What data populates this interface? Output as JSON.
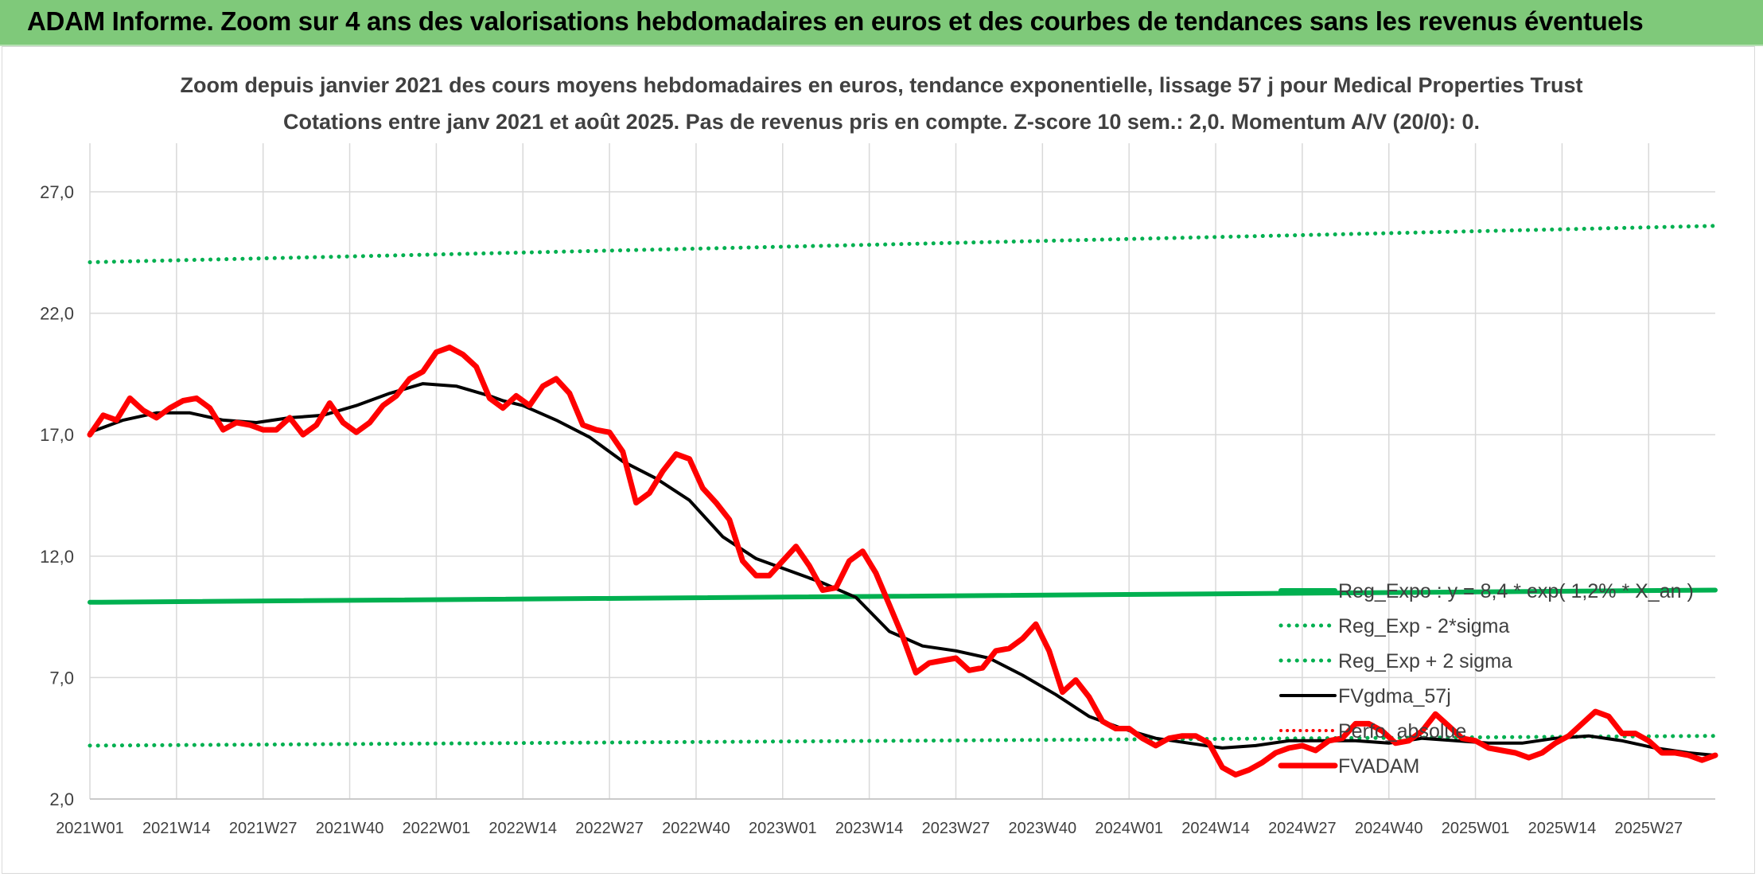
{
  "banner": {
    "title": "ADAM Informe. Zoom sur 4 ans des valorisations hebdomadaires en euros et des courbes de tendances sans les revenus éventuels"
  },
  "colors": {
    "banner": "#7fc97a",
    "trend": "#00b050",
    "price": "#ff0000",
    "smooth": "#000000",
    "absolute": "#ff0000",
    "grid": "#d9d9d9",
    "text": "#404040"
  },
  "chart_data": {
    "type": "line",
    "title": "Zoom depuis janvier 2021 des cours moyens hebdomadaires en euros, tendance exponentielle, lissage 57 j pour Medical Properties Trust",
    "subtitle": "Cotations entre janv 2021 et août 2025. Pas de revenus pris en compte. Z-score 10 sem.: 2,0. Momentum A/V (20/0): 0.",
    "ylim": [
      2,
      29
    ],
    "yticks": [
      "2,0",
      "7,0",
      "12,0",
      "17,0",
      "22,0",
      "27,0"
    ],
    "ytick_values": [
      2,
      7,
      12,
      17,
      22,
      27
    ],
    "xticks": [
      "2021W01",
      "2021W14",
      "2021W27",
      "2021W40",
      "2022W01",
      "2022W14",
      "2022W27",
      "2022W40",
      "2023W01",
      "2023W14",
      "2023W27",
      "2023W40",
      "2024W01",
      "2024W14",
      "2024W27",
      "2024W40",
      "2025W01",
      "2025W14",
      "2025W27"
    ],
    "week_count": 245,
    "grid": true,
    "legend_position": "right",
    "legend": [
      {
        "label": "Reg_Expo : y = 8,4 * exp( 1,2% * X_an )",
        "style": "solid",
        "color": "#00b050"
      },
      {
        "label": "Reg_Exp - 2*sigma",
        "style": "dotted",
        "color": "#00b050"
      },
      {
        "label": "Reg_Exp + 2 sigma",
        "style": "dotted",
        "color": "#00b050"
      },
      {
        "label": "FVgdma_57j",
        "style": "solid",
        "color": "#000000"
      },
      {
        "label": "Perfo_absolue",
        "style": "dotted",
        "color": "#ff0000"
      },
      {
        "label": "FVADAM",
        "style": "solid-thick",
        "color": "#ff0000"
      }
    ],
    "series": [
      {
        "name": "Reg_Expo : y = 8,4 * exp( 1,2% * X_an )",
        "x": [
          0,
          244
        ],
        "y": [
          10.1,
          10.6
        ]
      },
      {
        "name": "Reg_Exp - 2*sigma",
        "x": [
          0,
          244
        ],
        "y": [
          4.2,
          4.6
        ]
      },
      {
        "name": "Reg_Exp + 2 sigma",
        "x": [
          0,
          244
        ],
        "y": [
          24.1,
          25.6
        ]
      },
      {
        "name": "FVgdma_57j",
        "x": [
          0,
          5,
          10,
          15,
          20,
          25,
          30,
          35,
          40,
          45,
          50,
          55,
          60,
          62,
          65,
          70,
          75,
          80,
          85,
          90,
          95,
          100,
          105,
          110,
          115,
          120,
          125,
          130,
          135,
          140,
          145,
          150,
          155,
          160,
          165,
          170,
          175,
          180,
          185,
          190,
          195,
          200,
          205,
          210,
          215,
          220,
          225,
          230,
          235,
          240,
          244
        ],
        "y": [
          17.1,
          17.6,
          17.9,
          17.9,
          17.6,
          17.5,
          17.7,
          17.8,
          18.2,
          18.7,
          19.1,
          19.0,
          18.6,
          18.4,
          18.2,
          17.6,
          16.9,
          15.9,
          15.2,
          14.3,
          12.8,
          11.9,
          11.4,
          10.9,
          10.3,
          8.9,
          8.3,
          8.1,
          7.8,
          7.1,
          6.3,
          5.4,
          4.9,
          4.5,
          4.3,
          4.1,
          4.2,
          4.4,
          4.4,
          4.4,
          4.3,
          4.5,
          4.4,
          4.3,
          4.3,
          4.5,
          4.6,
          4.4,
          4.1,
          3.9,
          3.8
        ]
      },
      {
        "name": "FVADAM",
        "x": [
          0,
          2,
          4,
          6,
          8,
          10,
          12,
          14,
          16,
          18,
          20,
          22,
          24,
          26,
          28,
          30,
          32,
          34,
          36,
          38,
          40,
          42,
          44,
          46,
          48,
          50,
          52,
          54,
          56,
          58,
          60,
          62,
          64,
          66,
          68,
          70,
          72,
          74,
          76,
          78,
          80,
          82,
          84,
          86,
          88,
          90,
          92,
          94,
          96,
          98,
          100,
          102,
          104,
          106,
          108,
          110,
          112,
          114,
          116,
          118,
          120,
          122,
          124,
          126,
          128,
          130,
          132,
          134,
          136,
          138,
          140,
          142,
          144,
          146,
          148,
          150,
          152,
          154,
          156,
          158,
          160,
          162,
          164,
          166,
          168,
          170,
          172,
          174,
          176,
          178,
          180,
          182,
          184,
          186,
          188,
          190,
          192,
          194,
          196,
          198,
          200,
          202,
          204,
          206,
          208,
          210,
          212,
          214,
          216,
          218,
          220,
          222,
          224,
          226,
          228,
          230,
          232,
          234,
          236,
          238,
          240,
          242,
          244
        ],
        "y": [
          17.0,
          17.8,
          17.6,
          18.5,
          18.0,
          17.7,
          18.1,
          18.4,
          18.5,
          18.1,
          17.2,
          17.5,
          17.4,
          17.2,
          17.2,
          17.7,
          17.0,
          17.4,
          18.3,
          17.5,
          17.1,
          17.5,
          18.2,
          18.6,
          19.3,
          19.6,
          20.4,
          20.6,
          20.3,
          19.8,
          18.5,
          18.1,
          18.6,
          18.2,
          19.0,
          19.3,
          18.7,
          17.4,
          17.2,
          17.1,
          16.3,
          14.2,
          14.6,
          15.5,
          16.2,
          16.0,
          14.8,
          14.2,
          13.5,
          11.8,
          11.2,
          11.2,
          11.8,
          12.4,
          11.6,
          10.6,
          10.7,
          11.8,
          12.2,
          11.3,
          10.0,
          8.7,
          7.2,
          7.6,
          7.7,
          7.8,
          7.3,
          7.4,
          8.1,
          8.2,
          8.6,
          9.2,
          8.1,
          6.4,
          6.9,
          6.2,
          5.2,
          4.9,
          4.9,
          4.5,
          4.2,
          4.5,
          4.6,
          4.6,
          4.3,
          3.3,
          3.0,
          3.2,
          3.5,
          3.9,
          4.1,
          4.2,
          4.0,
          4.4,
          4.5,
          5.1,
          5.1,
          4.8,
          4.3,
          4.4,
          4.8,
          5.5,
          5.0,
          4.5,
          4.4,
          4.1,
          4.0,
          3.9,
          3.7,
          3.9,
          4.3,
          4.6,
          5.1,
          5.6,
          5.4,
          4.7,
          4.7,
          4.4,
          3.9,
          3.9,
          3.8,
          3.6,
          3.8
        ]
      }
    ]
  }
}
